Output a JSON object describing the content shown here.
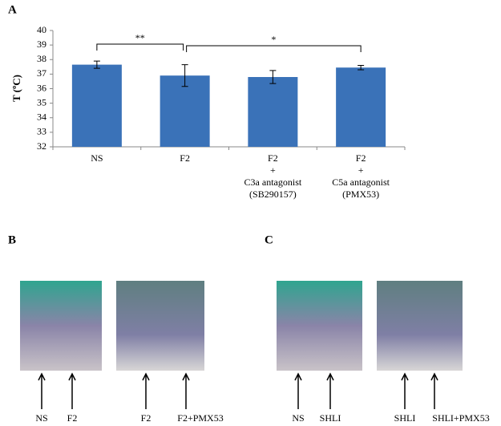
{
  "chart_data": {
    "type": "bar",
    "panel": "A",
    "y_label": "T (ºC)",
    "categories": [
      [
        "NS"
      ],
      [
        "F2"
      ],
      [
        "F2",
        "+",
        "C3a antagonist",
        "(SB290157)"
      ],
      [
        "F2",
        "+",
        "C5a antagonist",
        "(PMX53)"
      ]
    ],
    "values": [
      37.65,
      36.9,
      36.8,
      37.45
    ],
    "errors": [
      0.25,
      0.75,
      0.45,
      0.15
    ],
    "color": "#3a72b8",
    "ylim": [
      32,
      40
    ],
    "yticks": [
      32,
      33,
      34,
      35,
      36,
      37,
      38,
      39,
      40
    ],
    "annotations": [
      {
        "text": "**",
        "from": 0,
        "to": 1
      },
      {
        "text": "*",
        "from": 1,
        "to": 3
      }
    ]
  },
  "panels": [
    {
      "label": "B",
      "images": [
        [
          "NS",
          "F2"
        ],
        [
          "F2",
          "F2+PMX53"
        ]
      ]
    },
    {
      "label": "C",
      "images": [
        [
          "NS",
          "SHLI"
        ],
        [
          "SHLI",
          "SHLI+PMX53"
        ]
      ]
    }
  ]
}
